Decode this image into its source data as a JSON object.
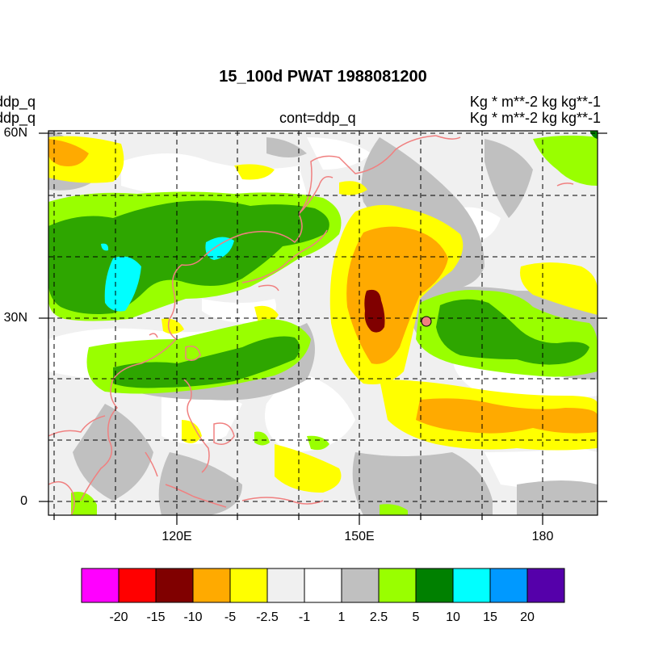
{
  "header": {
    "title": "15_100d PWAT  1988081200",
    "left_var_1": "ddp_q",
    "left_var_2": "ddp_q",
    "center_label": "cont=ddp_q",
    "units_1": "Kg  * m**-2 kg kg**-1",
    "units_2": "Kg  * m**-2 kg kg**-1"
  },
  "axes": {
    "lat_labels": [
      "60N",
      "30N",
      "0"
    ],
    "lon_labels": [
      "120E",
      "150E",
      "180"
    ]
  },
  "colorbar": {
    "labels": [
      "-20",
      "-15",
      "-10",
      "-5",
      "-2.5",
      "-1",
      "1",
      "2.5",
      "5",
      "10",
      "15",
      "20"
    ],
    "colors": [
      "#ff00ff",
      "#ff0000",
      "#800000",
      "#ffaa00",
      "#ffff00",
      "#f0f0f0",
      "#ffffff",
      "#c0c0c0",
      "#99ff00",
      "#008000",
      "#00ffff",
      "#0099ff",
      "#5500aa"
    ]
  },
  "colors": {
    "coastline": "#f08080",
    "marker_fill": "#f08080"
  }
}
